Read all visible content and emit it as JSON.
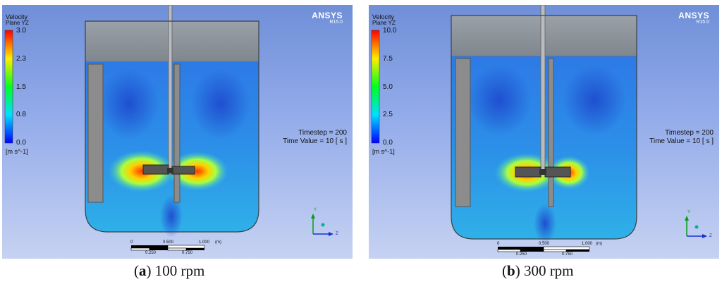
{
  "panels": [
    {
      "logo": "ANSYS",
      "version": "R15.0",
      "legend": {
        "title1": "Velocity",
        "title2": "Plane YZ",
        "ticks": [
          "3.0",
          "2.3",
          "1.5",
          "0.8",
          "0.0"
        ],
        "unit": "[m s^-1]"
      },
      "timestep": "Timestep = 200",
      "time_value": "Time Value = 10 [ s ]",
      "scale": {
        "top": [
          "0",
          "0.500",
          "1.000",
          "(m)"
        ],
        "bottom": [
          "0.250",
          "0.750"
        ]
      },
      "axes": {
        "y": "Y",
        "z": "Z"
      },
      "caption": {
        "letter": "a",
        "text": "100 rpm"
      }
    },
    {
      "logo": "ANSYS",
      "version": "R15.0",
      "legend": {
        "title1": "Velocity",
        "title2": "Plane YZ",
        "ticks": [
          "10.0",
          "7.5",
          "5.0",
          "2.5",
          "0.0"
        ],
        "unit": "[m s^-1]"
      },
      "timestep": "Timestep = 200",
      "time_value": "Time Value = 10 [ s ]",
      "scale": {
        "top": [
          "0",
          "0.500",
          "1.000",
          "(m)"
        ],
        "bottom": [
          "0.250",
          "0.750"
        ]
      },
      "axes": {
        "y": "Y",
        "z": "Z"
      },
      "caption": {
        "letter": "b",
        "text": "300 rpm"
      }
    }
  ],
  "colors": {
    "background_top": "#6f8fd8",
    "background_bottom": "#c6d2f2",
    "fluid": "#2f8fe8",
    "lid": "#8f969d",
    "baffle": "#8c8c8c",
    "hot": "#ff3300"
  }
}
